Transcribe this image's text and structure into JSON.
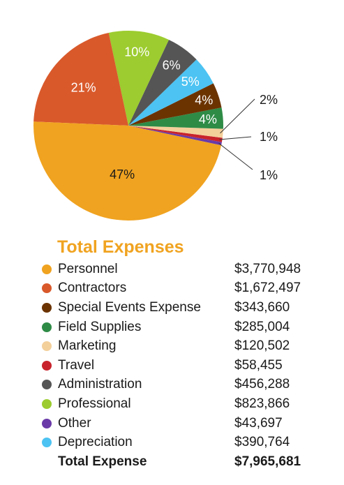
{
  "chart_data": {
    "type": "pie",
    "title": "Total Expenses",
    "slices": [
      {
        "name": "Personnel",
        "value": 3770948,
        "label": "47%",
        "color": "#f0a320"
      },
      {
        "name": "Contractors",
        "value": 1672497,
        "label": "21%",
        "color": "#d9592b"
      },
      {
        "name": "Professional",
        "value": 823866,
        "label": "10%",
        "color": "#9ccc2f"
      },
      {
        "name": "Administration",
        "value": 456288,
        "label": "6%",
        "color": "#555555"
      },
      {
        "name": "Depreciation",
        "value": 390764,
        "label": "5%",
        "color": "#4cc3f2"
      },
      {
        "name": "Special Events Expense",
        "value": 343660,
        "label": "4%",
        "color": "#6b3300"
      },
      {
        "name": "Field Supplies",
        "value": 285004,
        "label": "4%",
        "color": "#2e8b46"
      },
      {
        "name": "Marketing",
        "value": 120502,
        "label": "2%",
        "color": "#f3cf9a"
      },
      {
        "name": "Travel",
        "value": 58455,
        "label": "1%",
        "color": "#c8232c"
      },
      {
        "name": "Other",
        "value": 43697,
        "label": "1%",
        "color": "#6a3aa8"
      }
    ],
    "legend": [
      {
        "name": "Personnel",
        "amount": "$3,770,948",
        "color": "#f0a320"
      },
      {
        "name": "Contractors",
        "amount": "$1,672,497",
        "color": "#d9592b"
      },
      {
        "name": "Special Events Expense",
        "amount": "$343,660",
        "color": "#6b3300"
      },
      {
        "name": "Field Supplies",
        "amount": "$285,004",
        "color": "#2e8b46"
      },
      {
        "name": "Marketing",
        "amount": "$120,502",
        "color": "#f3cf9a"
      },
      {
        "name": "Travel",
        "amount": "$58,455",
        "color": "#c8232c"
      },
      {
        "name": "Administration",
        "amount": "$456,288",
        "color": "#555555"
      },
      {
        "name": "Professional",
        "amount": "$823,866",
        "color": "#9ccc2f"
      },
      {
        "name": "Other",
        "amount": "$43,697",
        "color": "#6a3aa8"
      },
      {
        "name": "Depreciation",
        "amount": "$390,764",
        "color": "#4cc3f2"
      }
    ],
    "total": {
      "label": "Total Expense",
      "amount": "$7,965,681"
    }
  }
}
